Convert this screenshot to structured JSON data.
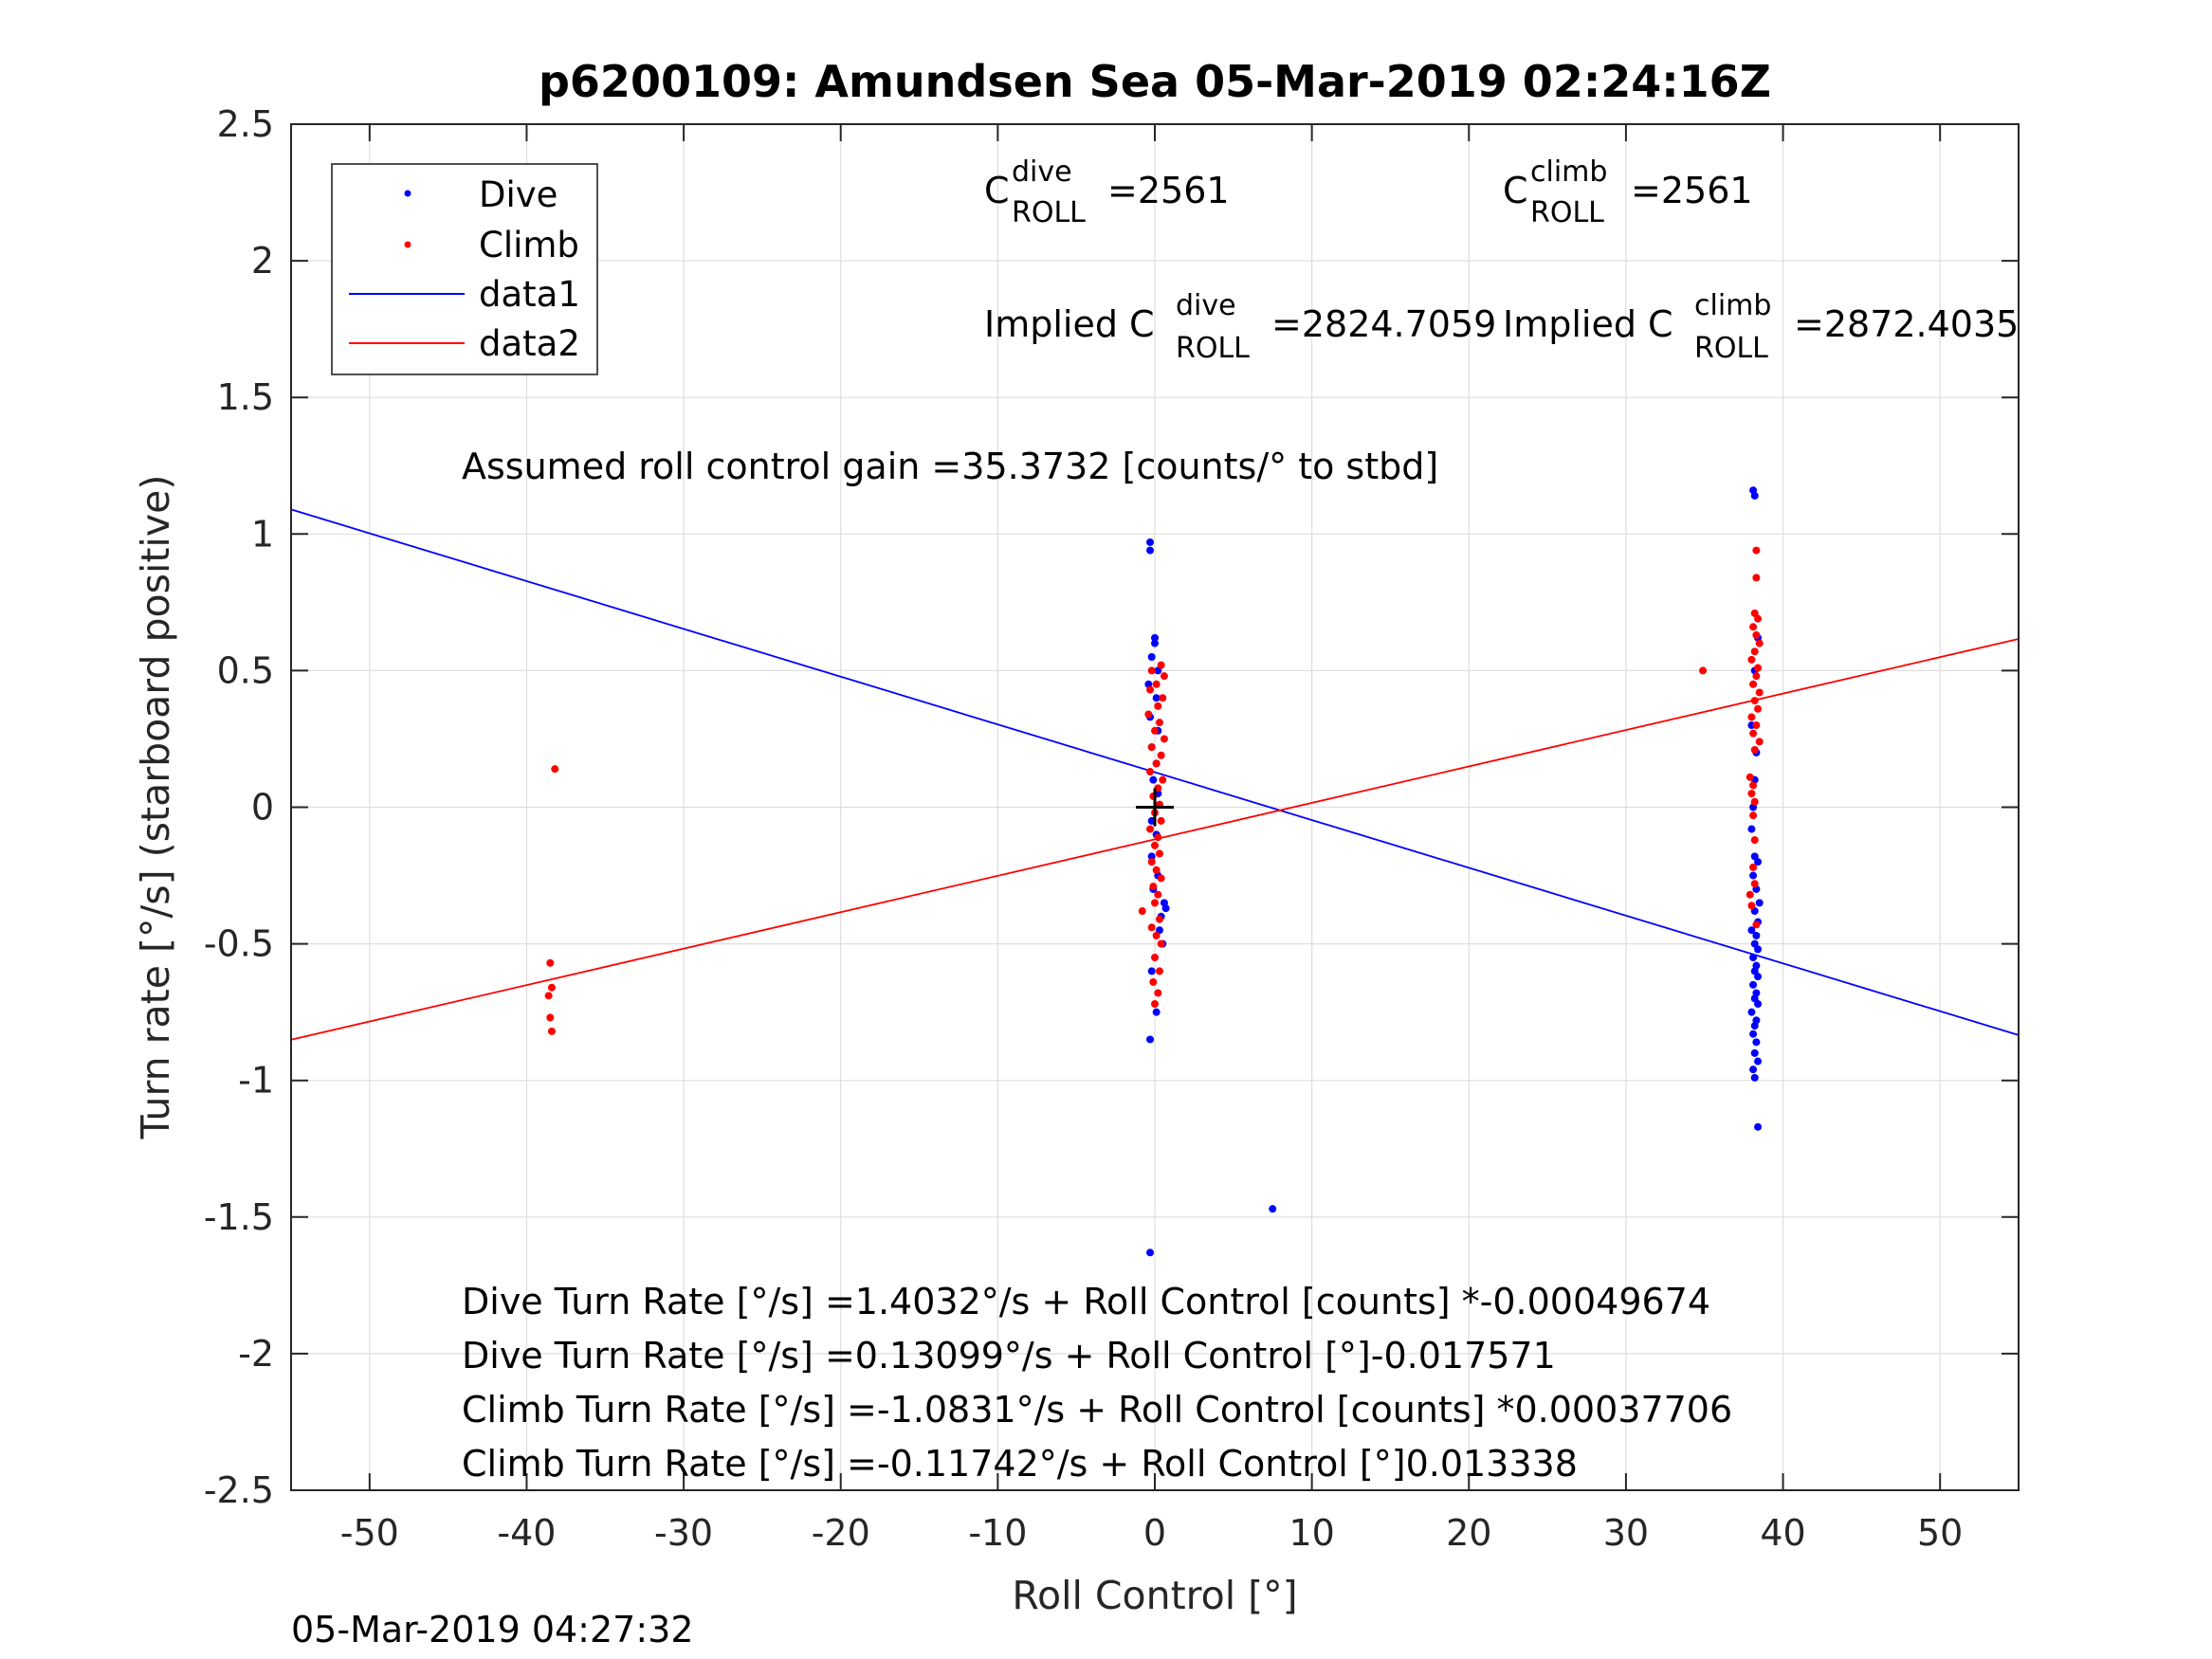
{
  "figure": {
    "footer_timestamp": "05-Mar-2019 04:27:32"
  },
  "chart_data": {
    "type": "scatter",
    "title": "p6200109: Amundsen Sea 05-Mar-2019 02:24:16Z",
    "xlabel": "Roll Control [°]",
    "ylabel": "Turn rate [°/s] (starboard positive)",
    "xlim": [
      -55,
      55
    ],
    "ylim": [
      -2.5,
      2.5
    ],
    "xticks": [
      -50,
      -40,
      -30,
      -20,
      -10,
      0,
      10,
      20,
      30,
      40,
      50
    ],
    "xtick_labels": [
      "-50",
      "-40",
      "-30",
      "-20",
      "-10",
      "0",
      "10",
      "20",
      "30",
      "40",
      "50"
    ],
    "yticks": [
      -2.5,
      -2,
      -1.5,
      -1,
      -0.5,
      0,
      0.5,
      1,
      1.5,
      2,
      2.5
    ],
    "ytick_labels": [
      "-2.5",
      "-2",
      "-1.5",
      "-1",
      "-0.5",
      "0",
      "0.5",
      "1",
      "1.5",
      "2",
      "2.5"
    ],
    "grid": true,
    "legend_position": "top-left",
    "legend": [
      {
        "label": "Dive",
        "style": "dot",
        "color": "#0000ff"
      },
      {
        "label": "Climb",
        "style": "dot",
        "color": "#ff0000"
      },
      {
        "label": "data1",
        "style": "line",
        "color": "#0000ff"
      },
      {
        "label": "data2",
        "style": "line",
        "color": "#ff0000"
      }
    ],
    "annotations": {
      "c_dive": {
        "base": "C",
        "sup": "dive",
        "sub": "ROLL",
        "value": "=2561"
      },
      "c_climb": {
        "base": "C",
        "sup": "climb",
        "sub": "ROLL",
        "value": "=2561"
      },
      "implied_dive": {
        "prefix": "Implied C",
        "sup": "dive",
        "sub": "ROLL",
        "value": "=2824.7059"
      },
      "implied_climb": {
        "prefix": "Implied C",
        "sup": "climb",
        "sub": "ROLL",
        "value": "=2872.4035"
      },
      "gain": "Assumed roll control gain =35.3732 [counts/° to stbd]",
      "equations": [
        "Dive Turn Rate [°/s] =1.4032°/s + Roll Control [counts] *-0.00049674",
        "Dive Turn Rate [°/s] =0.13099°/s + Roll Control [°]-0.017571",
        "Climb Turn Rate [°/s] =-1.0831°/s + Roll Control [counts] *0.00037706",
        "Climb Turn Rate [°/s] =-0.11742°/s + Roll Control [°]0.013338"
      ]
    },
    "series": [
      {
        "name": "Dive",
        "type": "scatter",
        "color": "#0000ff",
        "points": [
          [
            -0.3,
            0.97
          ],
          [
            -0.3,
            0.94
          ],
          [
            0,
            0.62
          ],
          [
            0,
            0.6
          ],
          [
            -0.2,
            0.55
          ],
          [
            0.2,
            0.5
          ],
          [
            -0.4,
            0.45
          ],
          [
            0.1,
            0.4
          ],
          [
            -0.3,
            0.33
          ],
          [
            0.2,
            0.28
          ],
          [
            -0.2,
            0.22
          ],
          [
            0.1,
            0.16
          ],
          [
            -0.1,
            0.1
          ],
          [
            0.2,
            0.05
          ],
          [
            -0.2,
            -0.05
          ],
          [
            0.1,
            -0.1
          ],
          [
            -0.2,
            -0.18
          ],
          [
            0.2,
            -0.25
          ],
          [
            -0.1,
            -0.3
          ],
          [
            0.6,
            -0.35
          ],
          [
            0.4,
            -0.4
          ],
          [
            0.7,
            -0.37
          ],
          [
            0.3,
            -0.45
          ],
          [
            0.5,
            -0.5
          ],
          [
            -0.2,
            -0.6
          ],
          [
            0.1,
            -0.75
          ],
          [
            -0.3,
            -0.85
          ],
          [
            7.5,
            -1.47
          ],
          [
            -0.3,
            -1.63
          ],
          [
            38.1,
            1.16
          ],
          [
            38.2,
            1.14
          ],
          [
            38.4,
            0.62
          ],
          [
            38.2,
            0.5
          ],
          [
            38.0,
            0.3
          ],
          [
            38.3,
            0.2
          ],
          [
            38.2,
            0.1
          ],
          [
            38.1,
            0.0
          ],
          [
            38.0,
            -0.08
          ],
          [
            38.2,
            -0.18
          ],
          [
            38.4,
            -0.2
          ],
          [
            38.1,
            -0.25
          ],
          [
            38.3,
            -0.3
          ],
          [
            38.5,
            -0.35
          ],
          [
            38.2,
            -0.38
          ],
          [
            38.4,
            -0.42
          ],
          [
            38.0,
            -0.45
          ],
          [
            38.3,
            -0.47
          ],
          [
            38.2,
            -0.5
          ],
          [
            38.4,
            -0.52
          ],
          [
            38.1,
            -0.55
          ],
          [
            38.3,
            -0.58
          ],
          [
            38.2,
            -0.6
          ],
          [
            38.4,
            -0.62
          ],
          [
            38.1,
            -0.65
          ],
          [
            38.3,
            -0.68
          ],
          [
            38.2,
            -0.7
          ],
          [
            38.4,
            -0.72
          ],
          [
            38.0,
            -0.75
          ],
          [
            38.3,
            -0.78
          ],
          [
            38.2,
            -0.8
          ],
          [
            38.1,
            -0.83
          ],
          [
            38.3,
            -0.86
          ],
          [
            38.2,
            -0.9
          ],
          [
            38.4,
            -0.93
          ],
          [
            38.1,
            -0.96
          ],
          [
            38.2,
            -0.99
          ],
          [
            38.4,
            -1.17
          ]
        ]
      },
      {
        "name": "Climb",
        "type": "scatter",
        "color": "#ff0000",
        "points": [
          [
            -38.2,
            0.14
          ],
          [
            -38.5,
            -0.57
          ],
          [
            -38.4,
            -0.66
          ],
          [
            -38.6,
            -0.69
          ],
          [
            -38.5,
            -0.77
          ],
          [
            -38.4,
            -0.82
          ],
          [
            0.4,
            0.52
          ],
          [
            -0.2,
            0.5
          ],
          [
            0.6,
            0.48
          ],
          [
            0.1,
            0.45
          ],
          [
            -0.3,
            0.43
          ],
          [
            0.5,
            0.4
          ],
          [
            0.2,
            0.37
          ],
          [
            -0.4,
            0.34
          ],
          [
            0.3,
            0.31
          ],
          [
            0.0,
            0.28
          ],
          [
            0.6,
            0.25
          ],
          [
            -0.2,
            0.22
          ],
          [
            0.4,
            0.19
          ],
          [
            0.1,
            0.16
          ],
          [
            -0.3,
            0.13
          ],
          [
            0.5,
            0.1
          ],
          [
            0.2,
            0.07
          ],
          [
            -0.1,
            0.04
          ],
          [
            0.3,
            0.01
          ],
          [
            0.0,
            -0.02
          ],
          [
            0.4,
            -0.05
          ],
          [
            -0.3,
            -0.08
          ],
          [
            0.2,
            -0.11
          ],
          [
            0.0,
            -0.14
          ],
          [
            0.3,
            -0.17
          ],
          [
            -0.2,
            -0.2
          ],
          [
            0.1,
            -0.23
          ],
          [
            0.4,
            -0.26
          ],
          [
            -0.1,
            -0.29
          ],
          [
            0.2,
            -0.32
          ],
          [
            0.0,
            -0.35
          ],
          [
            -0.8,
            -0.38
          ],
          [
            0.3,
            -0.41
          ],
          [
            -0.2,
            -0.44
          ],
          [
            0.1,
            -0.47
          ],
          [
            0.4,
            -0.5
          ],
          [
            0.0,
            -0.55
          ],
          [
            0.3,
            -0.6
          ],
          [
            -0.1,
            -0.64
          ],
          [
            0.2,
            -0.68
          ],
          [
            0.0,
            -0.72
          ],
          [
            38.3,
            0.94
          ],
          [
            38.3,
            0.84
          ],
          [
            38.2,
            0.71
          ],
          [
            38.4,
            0.69
          ],
          [
            38.1,
            0.66
          ],
          [
            38.3,
            0.63
          ],
          [
            38.5,
            0.6
          ],
          [
            38.2,
            0.57
          ],
          [
            38.0,
            0.54
          ],
          [
            38.4,
            0.51
          ],
          [
            34.9,
            0.5
          ],
          [
            38.3,
            0.48
          ],
          [
            38.1,
            0.45
          ],
          [
            38.5,
            0.42
          ],
          [
            38.2,
            0.39
          ],
          [
            38.4,
            0.36
          ],
          [
            38.0,
            0.33
          ],
          [
            38.3,
            0.3
          ],
          [
            38.1,
            0.27
          ],
          [
            38.5,
            0.24
          ],
          [
            38.2,
            0.21
          ],
          [
            37.9,
            0.11
          ],
          [
            38.1,
            0.08
          ],
          [
            38.0,
            0.05
          ],
          [
            38.2,
            0.02
          ],
          [
            38.1,
            -0.03
          ],
          [
            38.2,
            -0.12
          ],
          [
            38.1,
            -0.22
          ],
          [
            38.2,
            -0.28
          ],
          [
            37.9,
            -0.32
          ],
          [
            38.0,
            -0.36
          ],
          [
            38.3,
            -0.43
          ]
        ]
      },
      {
        "name": "data1",
        "type": "line",
        "color": "#0000ff",
        "x": [
          -55,
          55
        ],
        "y": [
          1.09,
          -0.834
        ]
      },
      {
        "name": "data2",
        "type": "line",
        "color": "#ff0000",
        "x": [
          -55,
          55
        ],
        "y": [
          -0.851,
          0.616
        ]
      }
    ],
    "marker": {
      "x": 0,
      "y": 0,
      "symbol": "+",
      "color": "#000000"
    }
  }
}
